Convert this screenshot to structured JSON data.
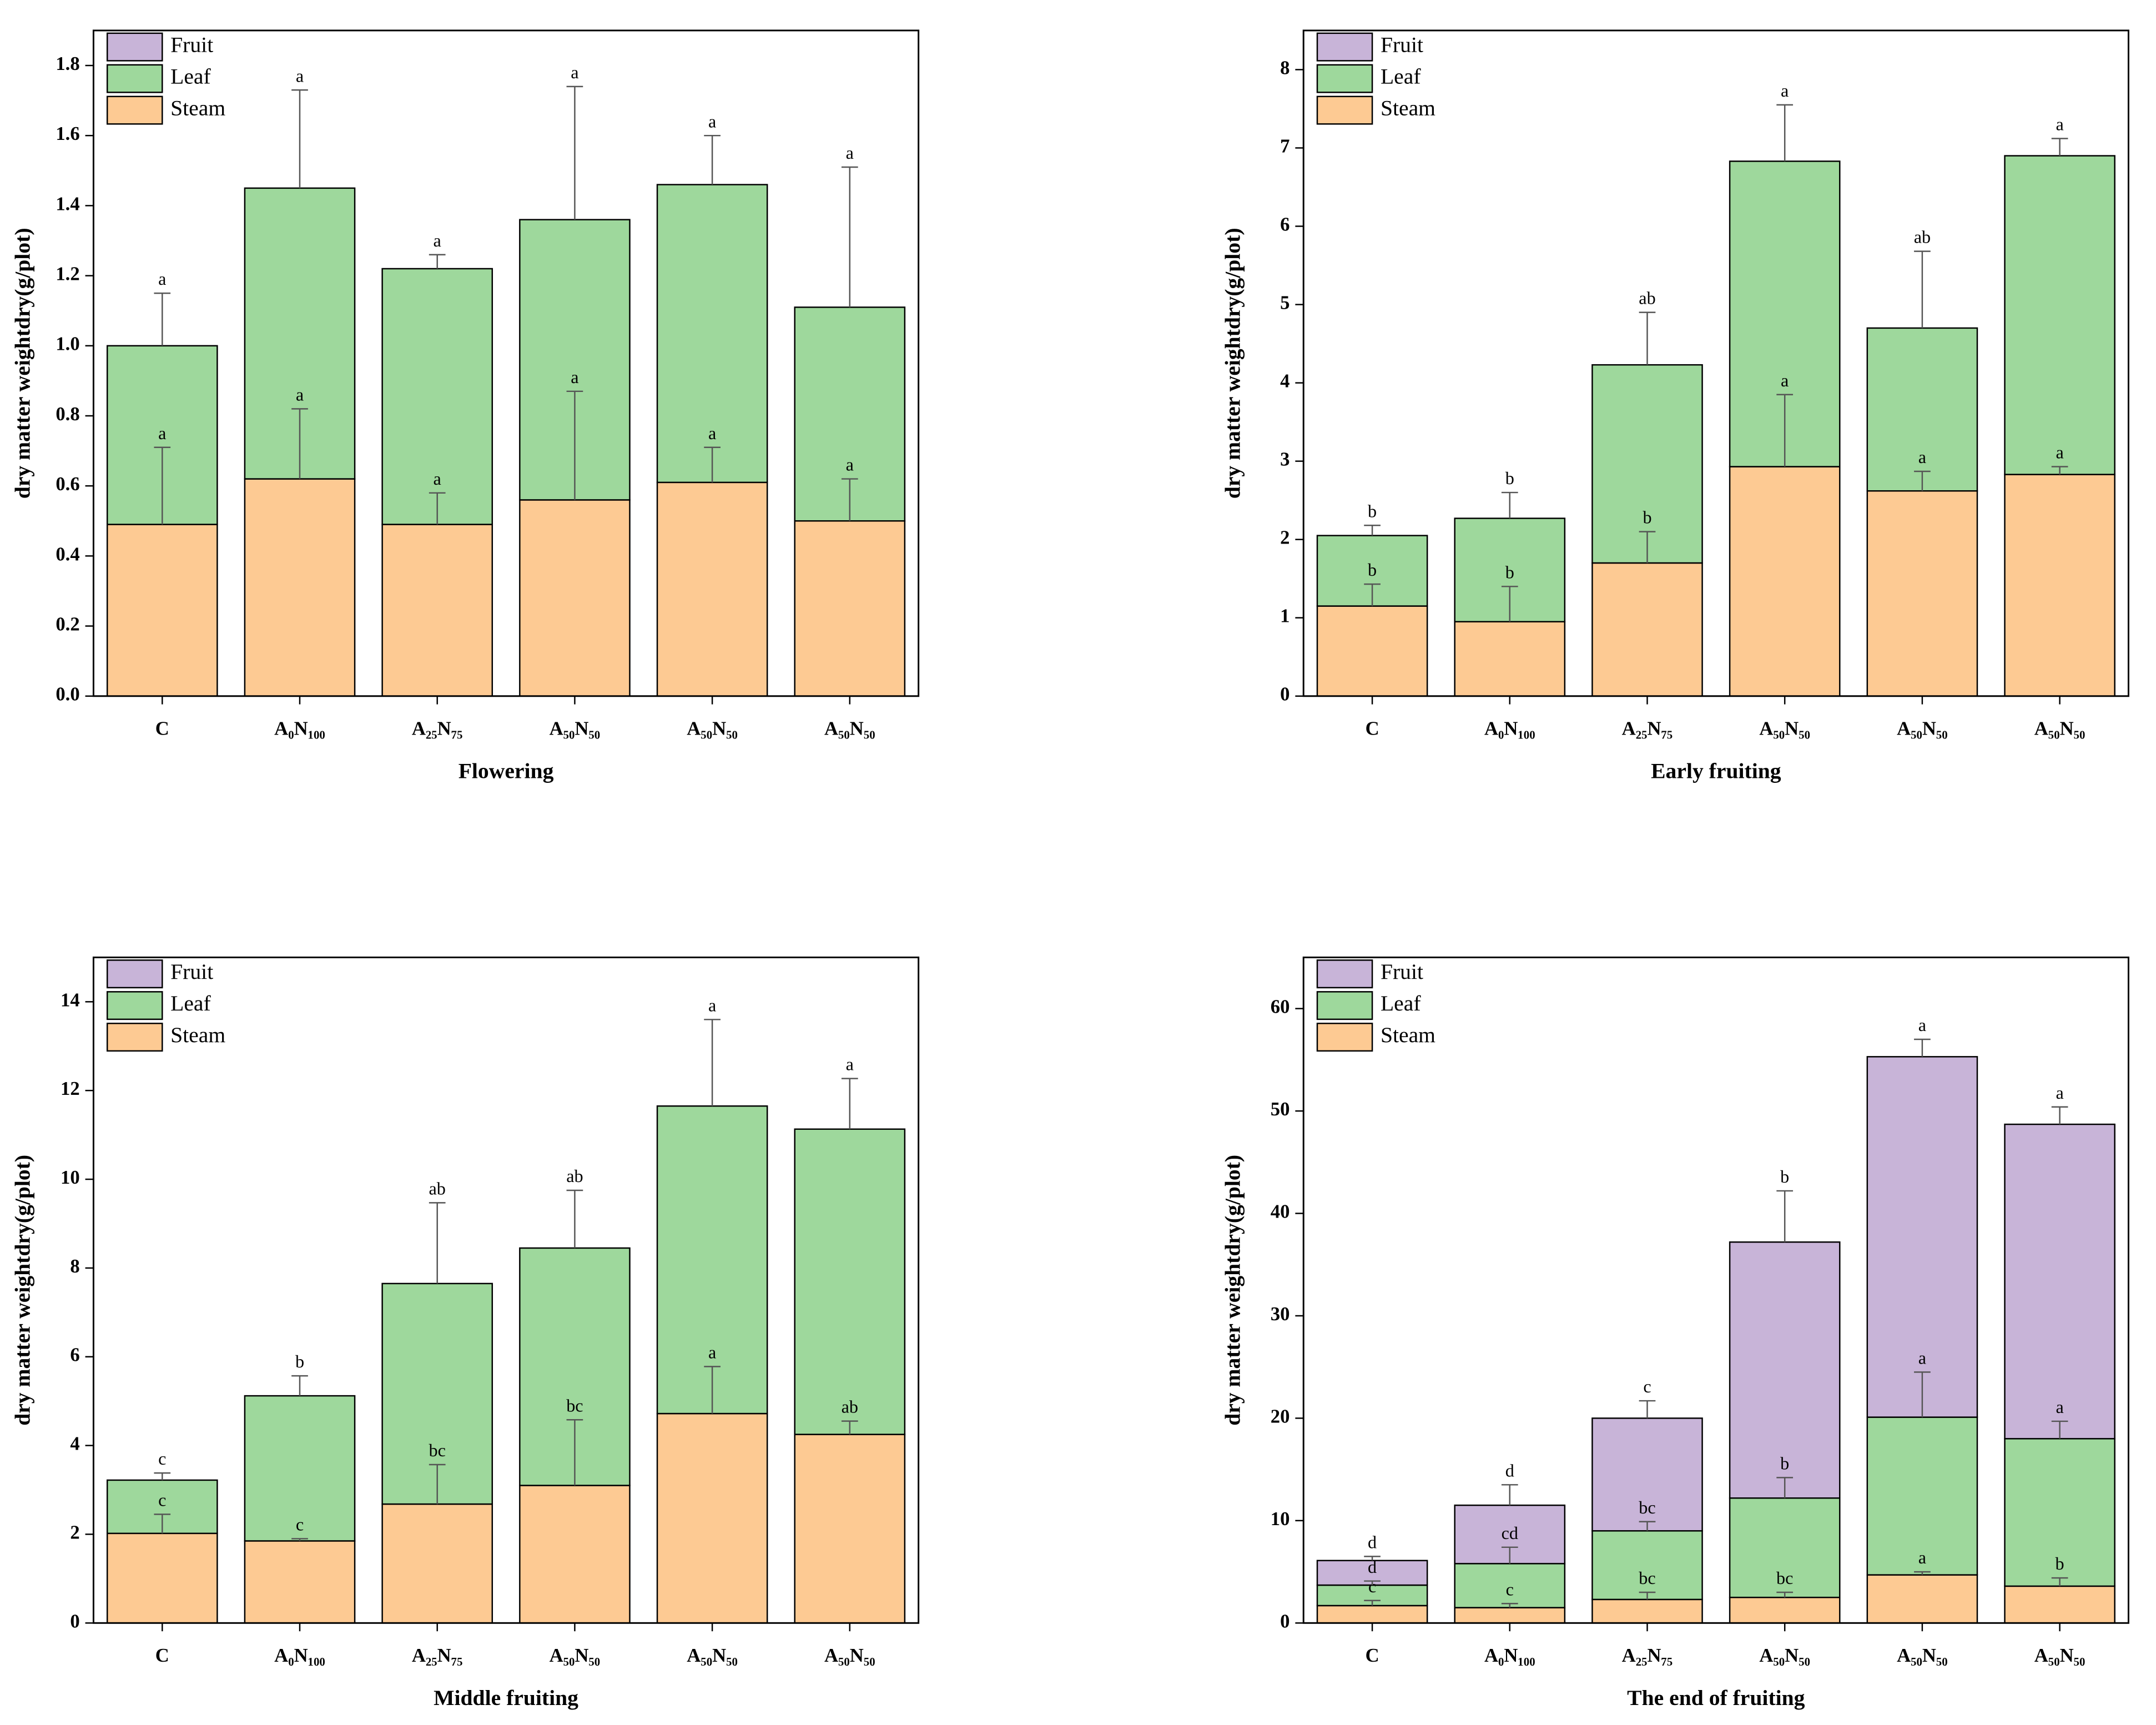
{
  "chart_data": [
    {
      "type": "bar",
      "stacked": true,
      "xlabel": "Flowering",
      "ylabel": "dry matter weightdry(g/plot)",
      "categories": [
        "C",
        "A₀N₁₀₀",
        "A₂₅N₇₅",
        "A₅₀N₅₀",
        "A₅₀N₅₀",
        "A₅₀N₅₀"
      ],
      "series": [
        {
          "name": "Steam",
          "color": "#fdca93",
          "values": [
            0.49,
            0.62,
            0.49,
            0.56,
            0.61,
            0.5
          ],
          "errors": [
            0.22,
            0.2,
            0.09,
            0.31,
            0.1,
            0.12
          ],
          "labels": [
            "a",
            "a",
            "a",
            "a",
            "a",
            "a"
          ]
        },
        {
          "name": "Leaf",
          "color": "#9ed89c",
          "values": [
            0.51,
            0.83,
            0.73,
            0.8,
            0.85,
            0.61
          ],
          "errors": [
            0.15,
            0.28,
            0.04,
            0.38,
            0.14,
            0.4
          ],
          "labels": [
            "a",
            "a",
            "a",
            "a",
            "a",
            "a"
          ]
        },
        {
          "name": "Fruit",
          "color": "#c8b4d8",
          "values": [
            0,
            0,
            0,
            0,
            0,
            0
          ]
        }
      ],
      "ylim": [
        0,
        1.9
      ],
      "yticks": [
        {
          "value": 0,
          "label": "0.0"
        },
        0.2,
        0.4,
        0.6,
        0.8,
        {
          "value": 1,
          "label": "1.0"
        },
        1.2,
        1.4,
        1.6,
        1.8
      ]
    },
    {
      "type": "bar",
      "stacked": true,
      "xlabel": "Early fruiting",
      "ylabel": "dry matter weightdry(g/plot)",
      "categories": [
        "C",
        "A₀N₁₀₀",
        "A₂₅N₇₅",
        "A₅₀N₅₀",
        "A₅₀N₅₀",
        "A₅₀N₅₀"
      ],
      "series": [
        {
          "name": "Steam",
          "color": "#fdca93",
          "values": [
            1.15,
            0.95,
            1.7,
            2.93,
            2.62,
            2.83
          ],
          "errors": [
            0.28,
            0.45,
            0.4,
            0.92,
            0.25,
            0.1
          ],
          "labels": [
            "b",
            "b",
            "b",
            "a",
            "a",
            "a"
          ]
        },
        {
          "name": "Leaf",
          "color": "#9ed89c",
          "values": [
            0.9,
            1.32,
            2.53,
            3.9,
            2.08,
            4.07
          ],
          "errors": [
            0.13,
            0.33,
            0.67,
            0.72,
            0.98,
            0.22
          ],
          "labels": [
            "b",
            "b",
            "ab",
            "a",
            "ab",
            "a"
          ]
        },
        {
          "name": "Fruit",
          "color": "#c8b4d8",
          "values": [
            0,
            0,
            0,
            0,
            0,
            0
          ]
        }
      ],
      "ylim": [
        0,
        8.5
      ],
      "yticks": [
        0,
        1,
        2,
        3,
        4,
        5,
        6,
        7,
        8
      ]
    },
    {
      "type": "bar",
      "stacked": true,
      "xlabel": "Middle fruiting",
      "ylabel": "dry matter weightdry(g/plot)",
      "categories": [
        "C",
        "A₀N₁₀₀",
        "A₂₅N₇₅",
        "A₅₀N₅₀",
        "A₅₀N₅₀",
        "A₅₀N₅₀"
      ],
      "series": [
        {
          "name": "Steam",
          "color": "#fdca93",
          "values": [
            2.02,
            1.85,
            2.68,
            3.1,
            4.72,
            4.25
          ],
          "errors": [
            0.43,
            0.05,
            0.89,
            1.48,
            1.06,
            0.3
          ],
          "labels": [
            "c",
            "c",
            "bc",
            "bc",
            "a",
            "ab"
          ]
        },
        {
          "name": "Leaf",
          "color": "#9ed89c",
          "values": [
            1.2,
            3.27,
            4.97,
            5.35,
            6.93,
            6.88
          ],
          "errors": [
            0.16,
            0.45,
            1.82,
            1.3,
            1.95,
            1.14
          ],
          "labels": [
            "c",
            "b",
            "ab",
            "ab",
            "a",
            "a"
          ]
        },
        {
          "name": "Fruit",
          "color": "#c8b4d8",
          "values": [
            0,
            0,
            0,
            0,
            0,
            0
          ]
        }
      ],
      "ylim": [
        0,
        15
      ],
      "yticks": [
        0,
        2,
        4,
        6,
        8,
        10,
        12,
        14
      ]
    },
    {
      "type": "bar",
      "stacked": true,
      "xlabel": "The end of fruiting",
      "ylabel": "dry matter weightdry(g/plot)",
      "categories": [
        "C",
        "A₀N₁₀₀",
        "A₂₅N₇₅",
        "A₅₀N₅₀",
        "A₅₀N₅₀",
        "A₅₀N₅₀"
      ],
      "series": [
        {
          "name": "Steam",
          "color": "#fdca93",
          "values": [
            1.7,
            1.5,
            2.3,
            2.5,
            4.7,
            3.6
          ],
          "errors": [
            0.5,
            0.4,
            0.7,
            0.5,
            0.3,
            0.8
          ],
          "labels": [
            "c",
            "c",
            "bc",
            "bc",
            "a",
            "b"
          ]
        },
        {
          "name": "Leaf",
          "color": "#9ed89c",
          "values": [
            2.0,
            4.3,
            6.7,
            9.7,
            15.4,
            14.4
          ],
          "errors": [
            0.4,
            1.6,
            0.9,
            2.0,
            4.4,
            1.7
          ],
          "labels": [
            "d",
            "cd",
            "bc",
            "b",
            "a",
            "a"
          ]
        },
        {
          "name": "Fruit",
          "color": "#c8b4d8",
          "values": [
            2.4,
            5.7,
            11.0,
            25.0,
            35.2,
            30.7
          ],
          "errors": [
            0.4,
            2.0,
            1.7,
            5.0,
            1.7,
            1.7
          ],
          "labels": [
            "d",
            "d",
            "c",
            "b",
            "a",
            "a"
          ]
        }
      ],
      "ylim": [
        0,
        65
      ],
      "yticks": [
        0,
        10,
        20,
        30,
        40,
        50,
        60
      ]
    }
  ]
}
